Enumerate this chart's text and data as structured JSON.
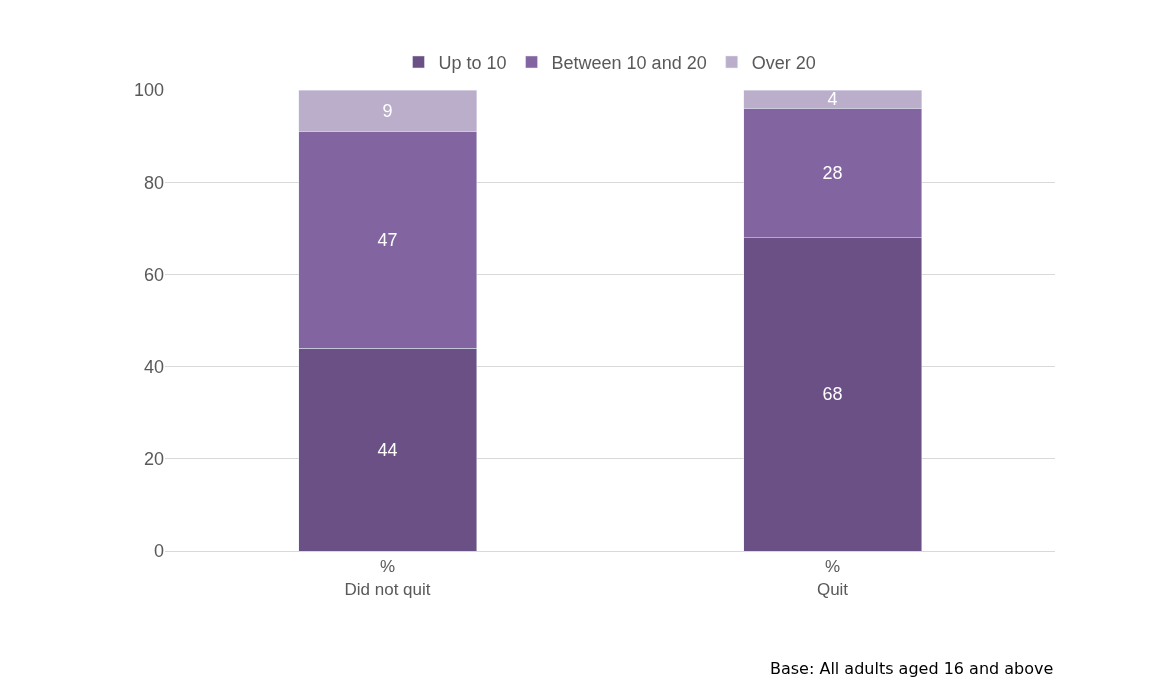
{
  "chart_data": {
    "type": "bar",
    "stacked": true,
    "categories": [
      "%\nDid not quit",
      "%\nQuit"
    ],
    "series": [
      {
        "name": "Up to 10",
        "color": "#6a5085",
        "values": [
          44,
          68
        ]
      },
      {
        "name": "Between 10 and 20",
        "color": "#8264a0",
        "values": [
          47,
          28
        ]
      },
      {
        "name": "Over 20",
        "color": "#bbaecb",
        "values": [
          9,
          4
        ]
      }
    ],
    "ylim": [
      0,
      100
    ],
    "yticks": [
      0,
      20,
      40,
      60,
      80,
      100
    ],
    "grid": "y",
    "legend": "top",
    "data_labels": true,
    "annotations": [
      "Base: All adults aged 16 and above"
    ]
  }
}
